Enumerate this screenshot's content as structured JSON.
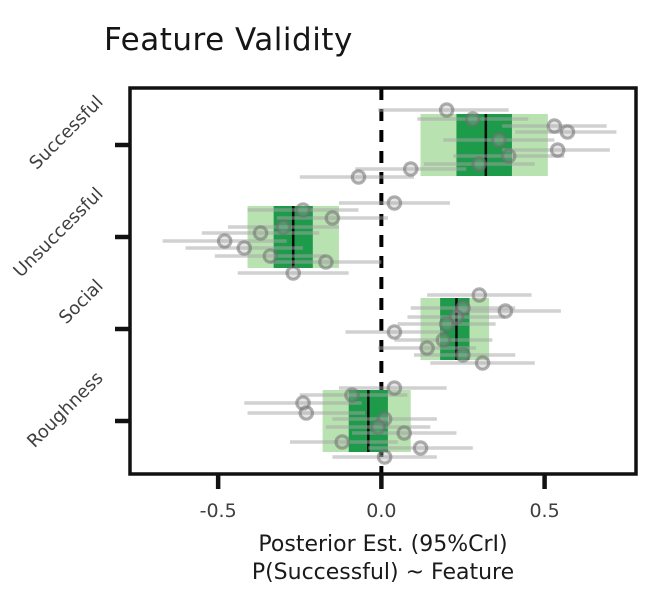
{
  "title": "Feature Validity",
  "xaxis": {
    "label_line1": "Posterior Est. (95%CrI)",
    "label_line2": "P(Successful) ~ Feature"
  },
  "chart_data": {
    "type": "interval_plot",
    "title": "Feature Validity",
    "xlabel": [
      "Posterior Est. (95%CrI)",
      "P(Successful) ~ Feature"
    ],
    "ylabel": "",
    "xlim": [
      -0.77,
      0.78
    ],
    "x_ticks": [
      -0.5,
      0.0,
      0.5
    ],
    "x_tick_labels": [
      "-0.5",
      "0.0",
      "0.5"
    ],
    "zero_reference_line": 0.0,
    "grid": false,
    "legend": "none",
    "colors": {
      "outer_interval": "#b9e2b1",
      "inner_interval": "#1d9b4b",
      "median_line": "#0a0a0a",
      "point_stroke": "#6f6f6f",
      "point_fill": "#aaaaaa",
      "ci_line": "#a3a3a3",
      "frame": "#111111",
      "tick_label": "#3f3f3f"
    },
    "rows": [
      {
        "label": "Successful",
        "median": 0.32,
        "inner_interval": [
          0.23,
          0.4
        ],
        "outer_interval": [
          0.12,
          0.51
        ],
        "points": [
          {
            "x": 0.2,
            "lo": -0.01,
            "hi": 0.39,
            "dy": -35
          },
          {
            "x": 0.28,
            "lo": 0.11,
            "hi": 0.45,
            "dy": -26
          },
          {
            "x": 0.53,
            "lo": 0.37,
            "hi": 0.69,
            "dy": -19
          },
          {
            "x": 0.57,
            "lo": 0.41,
            "hi": 0.72,
            "dy": -13
          },
          {
            "x": 0.36,
            "lo": 0.19,
            "hi": 0.53,
            "dy": -5
          },
          {
            "x": 0.54,
            "lo": 0.37,
            "hi": 0.7,
            "dy": 5
          },
          {
            "x": 0.39,
            "lo": 0.22,
            "hi": 0.56,
            "dy": 11
          },
          {
            "x": 0.3,
            "lo": 0.13,
            "hi": 0.47,
            "dy": 19
          },
          {
            "x": 0.09,
            "lo": -0.08,
            "hi": 0.26,
            "dy": 24
          },
          {
            "x": -0.07,
            "lo": -0.25,
            "hi": 0.1,
            "dy": 32
          }
        ]
      },
      {
        "label": "Unsuccessful",
        "median": -0.27,
        "inner_interval": [
          -0.33,
          -0.21
        ],
        "outer_interval": [
          -0.41,
          -0.13
        ],
        "points": [
          {
            "x": 0.04,
            "lo": -0.13,
            "hi": 0.21,
            "dy": -34
          },
          {
            "x": -0.24,
            "lo": -0.41,
            "hi": -0.07,
            "dy": -27
          },
          {
            "x": -0.15,
            "lo": -0.32,
            "hi": 0.02,
            "dy": -19
          },
          {
            "x": -0.3,
            "lo": -0.47,
            "hi": -0.13,
            "dy": -10
          },
          {
            "x": -0.37,
            "lo": -0.55,
            "hi": -0.19,
            "dy": -4
          },
          {
            "x": -0.48,
            "lo": -0.67,
            "hi": -0.29,
            "dy": 4
          },
          {
            "x": -0.42,
            "lo": -0.6,
            "hi": -0.24,
            "dy": 11
          },
          {
            "x": -0.34,
            "lo": -0.51,
            "hi": -0.17,
            "dy": 19
          },
          {
            "x": -0.17,
            "lo": -0.34,
            "hi": 0.0,
            "dy": 25
          },
          {
            "x": -0.27,
            "lo": -0.44,
            "hi": -0.1,
            "dy": 36
          }
        ]
      },
      {
        "label": "Social",
        "median": 0.23,
        "inner_interval": [
          0.18,
          0.27
        ],
        "outer_interval": [
          0.12,
          0.33
        ],
        "points": [
          {
            "x": 0.3,
            "lo": 0.14,
            "hi": 0.46,
            "dy": -34
          },
          {
            "x": 0.25,
            "lo": 0.09,
            "hi": 0.41,
            "dy": -21
          },
          {
            "x": 0.38,
            "lo": 0.22,
            "hi": 0.55,
            "dy": -18
          },
          {
            "x": 0.23,
            "lo": 0.08,
            "hi": 0.38,
            "dy": -12
          },
          {
            "x": 0.2,
            "lo": 0.05,
            "hi": 0.35,
            "dy": -5
          },
          {
            "x": 0.04,
            "lo": -0.11,
            "hi": 0.19,
            "dy": 3
          },
          {
            "x": 0.19,
            "lo": 0.04,
            "hi": 0.34,
            "dy": 11
          },
          {
            "x": 0.14,
            "lo": -0.01,
            "hi": 0.29,
            "dy": 19
          },
          {
            "x": 0.25,
            "lo": 0.1,
            "hi": 0.41,
            "dy": 26
          },
          {
            "x": 0.31,
            "lo": 0.15,
            "hi": 0.47,
            "dy": 34
          }
        ]
      },
      {
        "label": "Roughness",
        "median": -0.04,
        "inner_interval": [
          -0.1,
          0.02
        ],
        "outer_interval": [
          -0.18,
          0.09
        ],
        "points": [
          {
            "x": 0.04,
            "lo": -0.13,
            "hi": 0.2,
            "dy": -33
          },
          {
            "x": -0.09,
            "lo": -0.25,
            "hi": 0.08,
            "dy": -26
          },
          {
            "x": -0.24,
            "lo": -0.42,
            "hi": -0.06,
            "dy": -18
          },
          {
            "x": -0.23,
            "lo": -0.41,
            "hi": -0.05,
            "dy": -8
          },
          {
            "x": 0.01,
            "lo": -0.15,
            "hi": 0.17,
            "dy": -2
          },
          {
            "x": -0.01,
            "lo": -0.17,
            "hi": 0.15,
            "dy": 6
          },
          {
            "x": 0.07,
            "lo": -0.09,
            "hi": 0.23,
            "dy": 12
          },
          {
            "x": -0.12,
            "lo": -0.28,
            "hi": 0.05,
            "dy": 21
          },
          {
            "x": 0.12,
            "lo": -0.04,
            "hi": 0.28,
            "dy": 27
          },
          {
            "x": 0.01,
            "lo": -0.15,
            "hi": 0.17,
            "dy": 36
          }
        ]
      }
    ]
  }
}
